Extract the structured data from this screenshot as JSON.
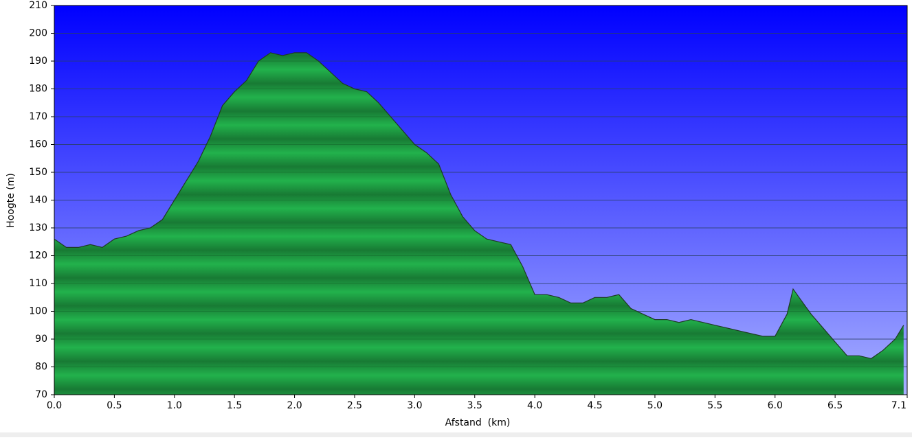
{
  "chart_data": {
    "type": "area",
    "xlabel": "Afstand  (km)",
    "ylabel": "Hoogte (m)",
    "x": [
      0.0,
      0.1,
      0.2,
      0.3,
      0.4,
      0.5,
      0.6,
      0.7,
      0.8,
      0.9,
      1.0,
      1.1,
      1.2,
      1.3,
      1.4,
      1.5,
      1.6,
      1.7,
      1.8,
      1.9,
      2.0,
      2.1,
      2.2,
      2.3,
      2.4,
      2.5,
      2.6,
      2.7,
      2.8,
      2.9,
      3.0,
      3.1,
      3.2,
      3.3,
      3.4,
      3.5,
      3.6,
      3.7,
      3.8,
      3.9,
      4.0,
      4.1,
      4.2,
      4.3,
      4.4,
      4.5,
      4.6,
      4.7,
      4.8,
      4.9,
      5.0,
      5.1,
      5.2,
      5.3,
      5.4,
      5.5,
      5.6,
      5.7,
      5.8,
      5.9,
      6.0,
      6.1,
      6.15,
      6.2,
      6.3,
      6.4,
      6.5,
      6.6,
      6.7,
      6.8,
      6.9,
      7.0,
      7.07
    ],
    "values": [
      126,
      123,
      123,
      124,
      123,
      126,
      127,
      129,
      130,
      133,
      140,
      147,
      154,
      163,
      174,
      179,
      183,
      190,
      193,
      192,
      193,
      193,
      190,
      186,
      182,
      180,
      179,
      175,
      170,
      165,
      160,
      157,
      153,
      142,
      134,
      129,
      126,
      125,
      124,
      116,
      106,
      106,
      105,
      103,
      103,
      105,
      105,
      106,
      101,
      99,
      97,
      97,
      96,
      97,
      96,
      95,
      94,
      93,
      92,
      91,
      91,
      99,
      108,
      105,
      99,
      94,
      89,
      84,
      84,
      83,
      86,
      90,
      95
    ],
    "color": "#22a84a",
    "xlim": [
      0,
      7.1
    ],
    "xticks": [
      {
        "value": 0,
        "label": "0.0"
      },
      0.5,
      {
        "value": 1,
        "label": "1.0"
      },
      1.5,
      {
        "value": 2,
        "label": "2.0"
      },
      2.5,
      {
        "value": 3,
        "label": "3.0"
      },
      3.5,
      {
        "value": 4,
        "label": "4.0"
      },
      4.5,
      {
        "value": 5,
        "label": "5.0"
      },
      5.5,
      {
        "value": 6,
        "label": "6.0"
      },
      6.5,
      7.1
    ],
    "ylim": [
      70,
      210
    ],
    "yticks": [
      70,
      80,
      90,
      100,
      110,
      120,
      130,
      140,
      150,
      160,
      170,
      180,
      190,
      200,
      210
    ],
    "grid": true
  }
}
